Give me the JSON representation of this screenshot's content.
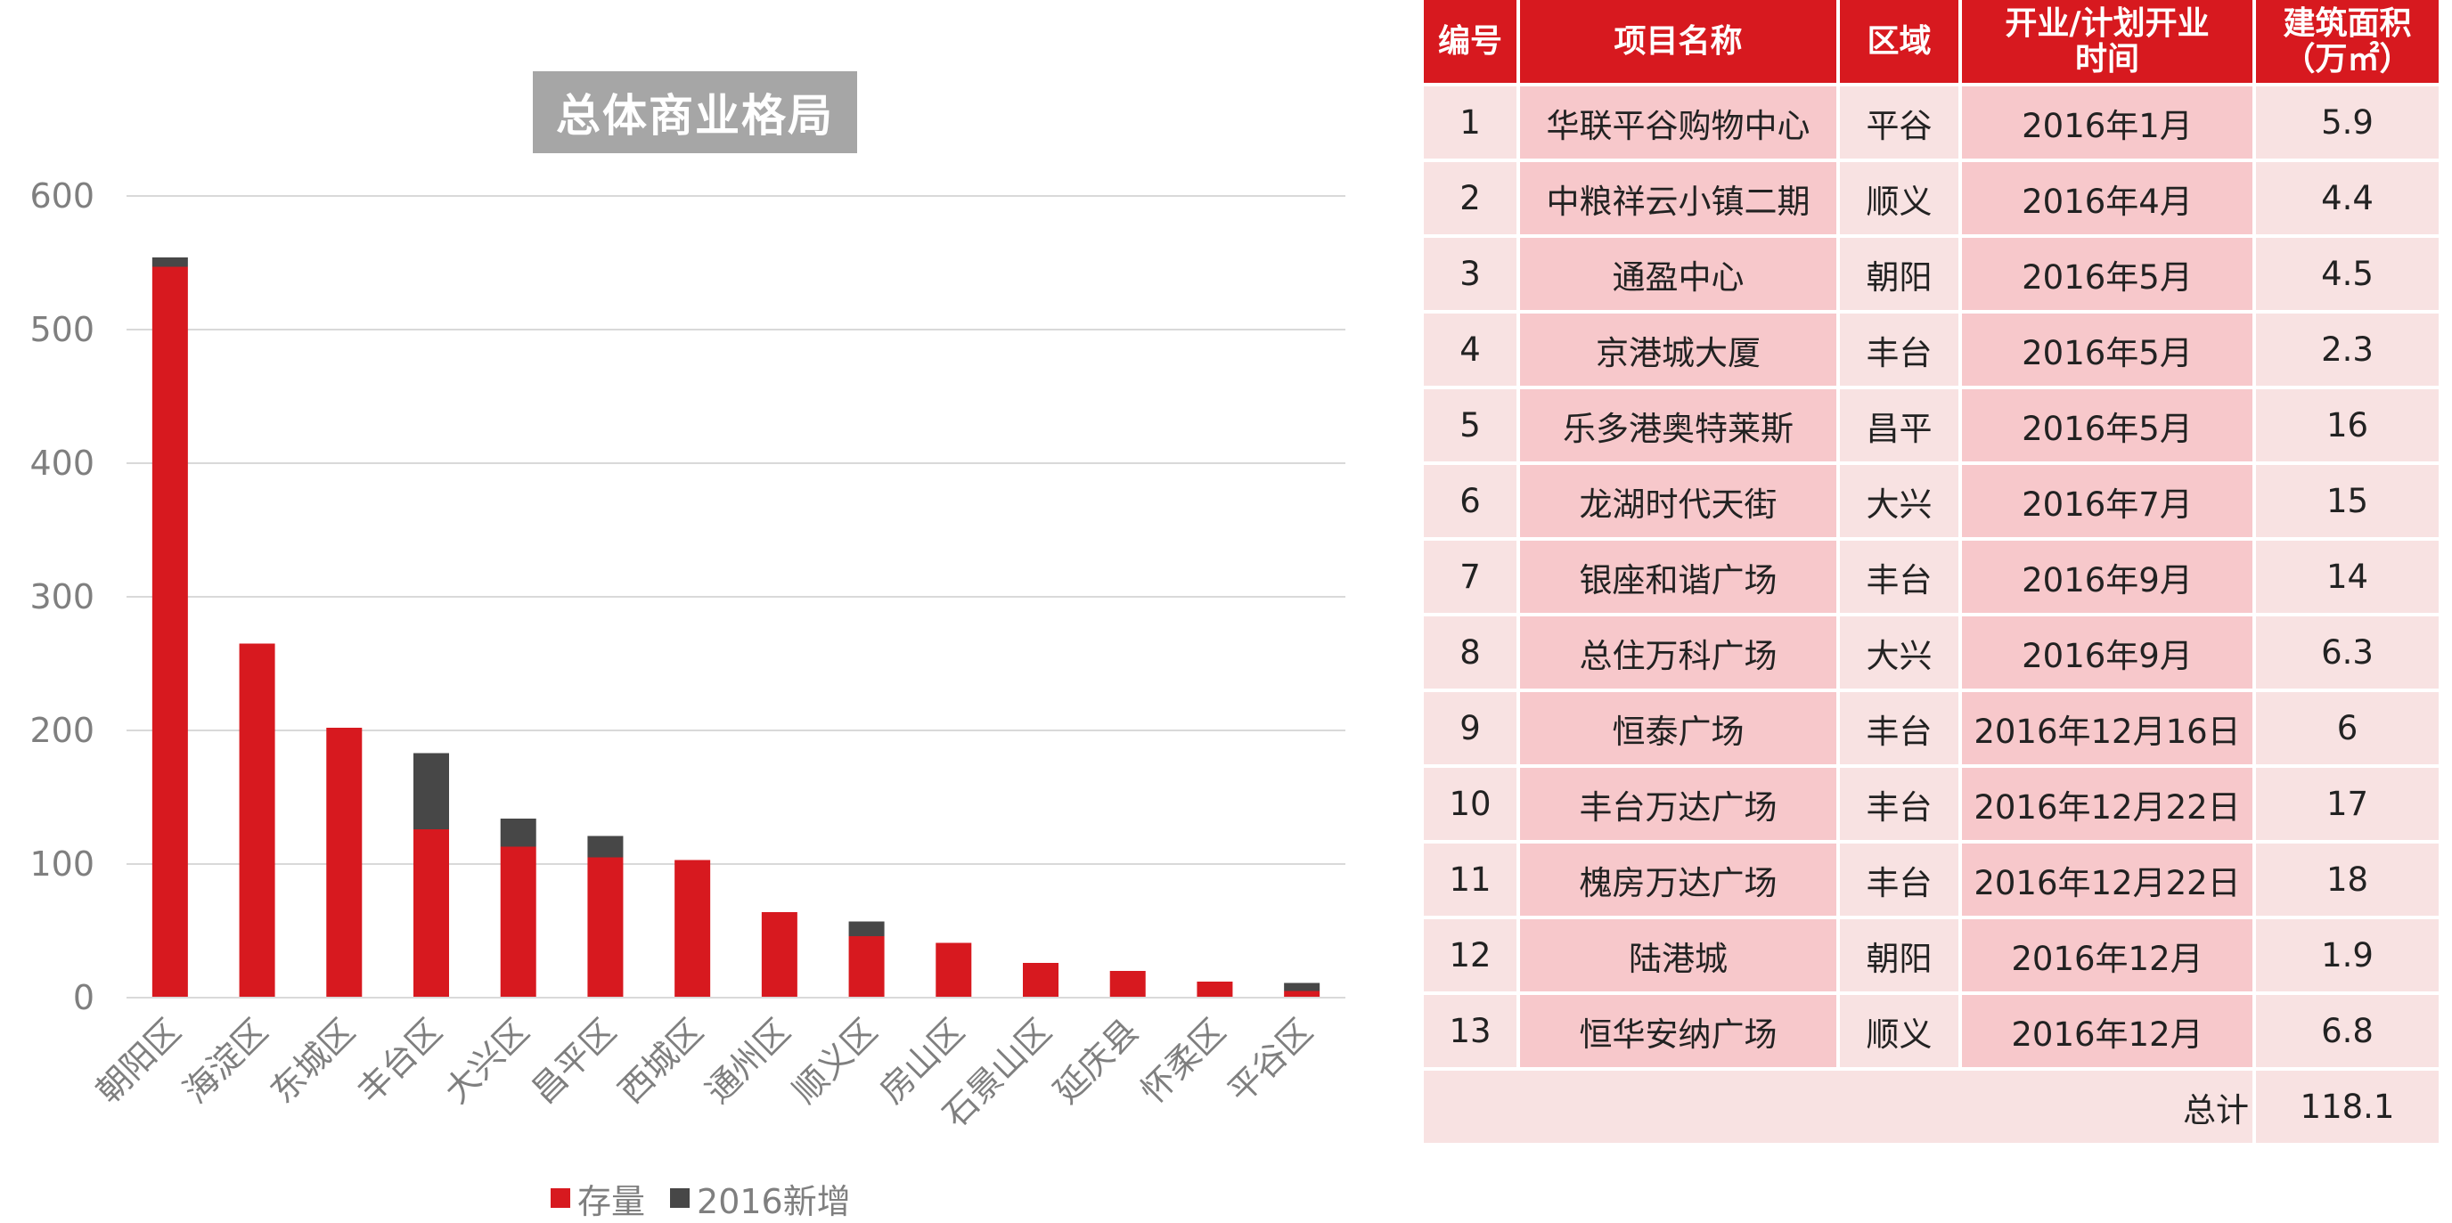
{
  "chart_data": {
    "type": "bar",
    "stacked": true,
    "title": "总体商业格局",
    "categories": [
      "朝阳区",
      "海淀区",
      "东城区",
      "丰台区",
      "大兴区",
      "昌平区",
      "西城区",
      "通州区",
      "顺义区",
      "房山区",
      "石景山区",
      "延庆县",
      "怀柔区",
      "平谷区"
    ],
    "series": [
      {
        "name": "存量",
        "color": "#d7191f",
        "values": [
          547,
          265,
          202,
          126,
          113,
          105,
          103,
          64,
          46,
          41,
          26,
          20,
          12,
          5
        ]
      },
      {
        "name": "2016新增",
        "color": "#474747",
        "values": [
          7,
          0,
          0,
          57,
          21,
          16,
          0,
          0,
          11,
          0,
          0,
          0,
          0,
          6
        ]
      }
    ],
    "ylim": [
      0,
      600
    ],
    "yticks": [
      0,
      100,
      200,
      300,
      400,
      500,
      600
    ],
    "xlabel": "",
    "ylabel": "",
    "grid": true,
    "legend": "bottom"
  },
  "table": {
    "headers": [
      "编号",
      "项目名称",
      "区域",
      "开业/计划开业\n时间",
      "建筑面积\n（万㎡）"
    ],
    "rows": [
      [
        "1",
        "华联平谷购物中心",
        "平谷",
        "2016年1月",
        "5.9"
      ],
      [
        "2",
        "中粮祥云小镇二期",
        "顺义",
        "2016年4月",
        "4.4"
      ],
      [
        "3",
        "通盈中心",
        "朝阳",
        "2016年5月",
        "4.5"
      ],
      [
        "4",
        "京港城大厦",
        "丰台",
        "2016年5月",
        "2.3"
      ],
      [
        "5",
        "乐多港奥特莱斯",
        "昌平",
        "2016年5月",
        "16"
      ],
      [
        "6",
        "龙湖时代天街",
        "大兴",
        "2016年7月",
        "15"
      ],
      [
        "7",
        "银座和谐广场",
        "丰台",
        "2016年9月",
        "14"
      ],
      [
        "8",
        "总住万科广场",
        "大兴",
        "2016年9月",
        "6.3"
      ],
      [
        "9",
        "恒泰广场",
        "丰台",
        "2016年12月16日",
        "6"
      ],
      [
        "10",
        "丰台万达广场",
        "丰台",
        "2016年12月22日",
        "17"
      ],
      [
        "11",
        "槐房万达广场",
        "丰台",
        "2016年12月22日",
        "18"
      ],
      [
        "12",
        "陆港城",
        "朝阳",
        "2016年12月",
        "1.9"
      ],
      [
        "13",
        "恒华安纳广场",
        "顺义",
        "2016年12月",
        "6.8"
      ]
    ],
    "total_label": "总计",
    "total_value": "118.1"
  }
}
